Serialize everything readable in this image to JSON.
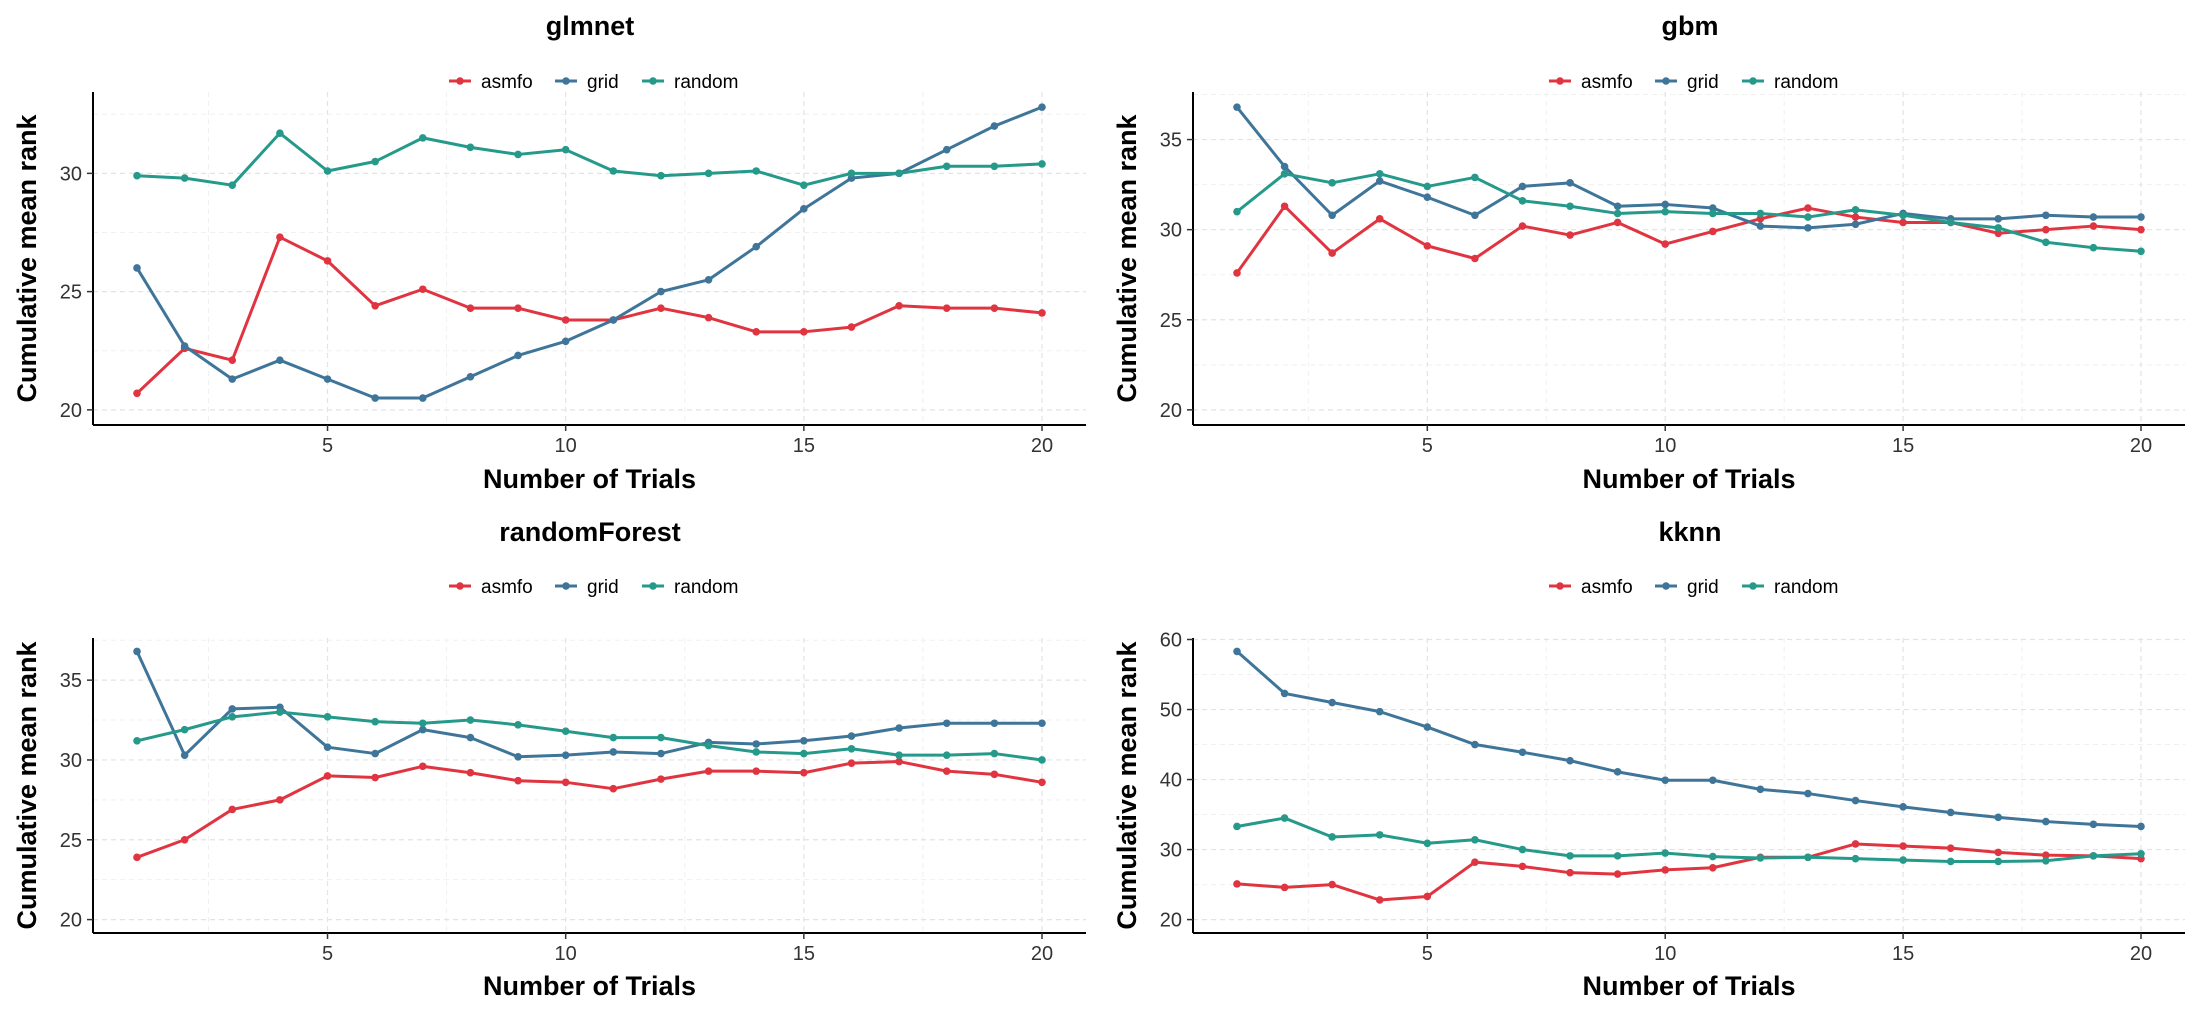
{
  "colors": {
    "asmfo": "#e03540",
    "grid": "#3f7599",
    "random": "#25998a"
  },
  "chart_data": [
    {
      "type": "line",
      "title": "glmnet",
      "xlabel": "Number of Trials",
      "ylabel": "Cumulative mean rank",
      "xlim": [
        1,
        20
      ],
      "ylim": [
        20.5,
        32.8
      ],
      "xticks": [
        5,
        10,
        15,
        20
      ],
      "yticks": [
        20,
        25,
        30
      ],
      "legend_position": "top",
      "x": [
        1,
        2,
        3,
        4,
        5,
        6,
        7,
        8,
        9,
        10,
        11,
        12,
        13,
        14,
        15,
        16,
        17,
        18,
        19,
        20
      ],
      "series": [
        {
          "name": "asmfo",
          "values": [
            20.7,
            22.6,
            22.1,
            27.3,
            26.3,
            24.4,
            25.1,
            24.3,
            24.3,
            23.8,
            23.8,
            24.3,
            23.9,
            23.3,
            23.3,
            23.5,
            24.4,
            24.3,
            24.3,
            24.1
          ]
        },
        {
          "name": "grid",
          "values": [
            26.0,
            22.7,
            21.3,
            22.1,
            21.3,
            20.5,
            20.5,
            21.4,
            22.3,
            22.9,
            23.8,
            25.0,
            25.5,
            26.9,
            28.5,
            29.8,
            30.0,
            31.0,
            32.0,
            32.8
          ]
        },
        {
          "name": "random",
          "values": [
            29.9,
            29.8,
            29.5,
            31.7,
            30.1,
            30.5,
            31.5,
            31.1,
            30.8,
            31.0,
            30.1,
            29.9,
            30.0,
            30.1,
            29.5,
            30.0,
            30.0,
            30.3,
            30.3,
            30.4
          ]
        }
      ]
    },
    {
      "type": "line",
      "title": "gbm",
      "xlabel": "Number of Trials",
      "ylabel": "Cumulative mean rank",
      "xlim": [
        1,
        20
      ],
      "ylim": [
        20,
        36.8
      ],
      "xticks": [
        5,
        10,
        15,
        20
      ],
      "yticks": [
        20,
        25,
        30,
        35
      ],
      "legend_position": "top",
      "x": [
        1,
        2,
        3,
        4,
        5,
        6,
        7,
        8,
        9,
        10,
        11,
        12,
        13,
        14,
        15,
        16,
        17,
        18,
        19,
        20
      ],
      "series": [
        {
          "name": "asmfo",
          "values": [
            27.6,
            31.3,
            28.7,
            30.6,
            29.1,
            28.4,
            30.2,
            29.7,
            30.4,
            29.2,
            29.9,
            30.6,
            31.2,
            30.7,
            30.4,
            30.4,
            29.8,
            30.0,
            30.2,
            30.0
          ]
        },
        {
          "name": "grid",
          "values": [
            36.8,
            33.5,
            30.8,
            32.7,
            31.8,
            30.8,
            32.4,
            32.6,
            31.3,
            31.4,
            31.2,
            30.2,
            30.1,
            30.3,
            30.9,
            30.6,
            30.6,
            30.8,
            30.7,
            30.7
          ]
        },
        {
          "name": "random",
          "values": [
            31.0,
            33.1,
            32.6,
            33.1,
            32.4,
            32.9,
            31.6,
            31.3,
            30.9,
            31.0,
            30.9,
            30.9,
            30.7,
            31.1,
            30.8,
            30.4,
            30.1,
            29.3,
            29.0,
            28.8
          ]
        }
      ]
    },
    {
      "type": "line",
      "title": "randomForest",
      "xlabel": "Number of Trials",
      "ylabel": "Cumulative mean rank",
      "xlim": [
        1,
        20
      ],
      "ylim": [
        20,
        36.8
      ],
      "xticks": [
        5,
        10,
        15,
        20
      ],
      "yticks": [
        20,
        25,
        30,
        35
      ],
      "legend_position": "top",
      "x": [
        1,
        2,
        3,
        4,
        5,
        6,
        7,
        8,
        9,
        10,
        11,
        12,
        13,
        14,
        15,
        16,
        17,
        18,
        19,
        20
      ],
      "series": [
        {
          "name": "asmfo",
          "values": [
            23.9,
            25.0,
            26.9,
            27.5,
            29.0,
            28.9,
            29.6,
            29.2,
            28.7,
            28.6,
            28.2,
            28.8,
            29.3,
            29.3,
            29.2,
            29.8,
            29.9,
            29.3,
            29.1,
            28.6
          ]
        },
        {
          "name": "grid",
          "values": [
            36.8,
            30.3,
            33.2,
            33.3,
            30.8,
            30.4,
            31.9,
            31.4,
            30.2,
            30.3,
            30.5,
            30.4,
            31.1,
            31.0,
            31.2,
            31.5,
            32.0,
            32.3,
            32.3,
            32.3
          ]
        },
        {
          "name": "random",
          "values": [
            31.2,
            31.9,
            32.7,
            33.0,
            32.7,
            32.4,
            32.3,
            32.5,
            32.2,
            31.8,
            31.4,
            31.4,
            30.9,
            30.5,
            30.4,
            30.7,
            30.3,
            30.3,
            30.4,
            30.0
          ]
        }
      ]
    },
    {
      "type": "line",
      "title": "kknn",
      "xlabel": "Number of Trials",
      "ylabel": "Cumulative mean rank",
      "xlim": [
        1,
        20
      ],
      "ylim": [
        22.8,
        58.3
      ],
      "xticks": [
        5,
        10,
        15,
        20
      ],
      "yticks": [
        20,
        30,
        40,
        50,
        60
      ],
      "legend_position": "top",
      "x": [
        1,
        2,
        3,
        4,
        5,
        6,
        7,
        8,
        9,
        10,
        11,
        12,
        13,
        14,
        15,
        16,
        17,
        18,
        19,
        20
      ],
      "series": [
        {
          "name": "asmfo",
          "values": [
            25.1,
            24.6,
            25.0,
            22.8,
            23.3,
            28.2,
            27.6,
            26.7,
            26.5,
            27.1,
            27.4,
            28.9,
            28.9,
            30.8,
            30.5,
            30.2,
            29.6,
            29.2,
            29.1,
            28.7
          ]
        },
        {
          "name": "grid",
          "values": [
            58.3,
            52.3,
            51.0,
            49.7,
            47.5,
            45.0,
            43.9,
            42.7,
            41.1,
            39.9,
            39.9,
            38.6,
            38.0,
            37.0,
            36.1,
            35.3,
            34.6,
            34.0,
            33.6,
            33.3
          ]
        },
        {
          "name": "random",
          "values": [
            33.3,
            34.5,
            31.8,
            32.1,
            30.9,
            31.4,
            30.0,
            29.1,
            29.1,
            29.5,
            29.0,
            28.8,
            28.9,
            28.7,
            28.5,
            28.3,
            28.3,
            28.4,
            29.1,
            29.4
          ]
        }
      ]
    }
  ]
}
